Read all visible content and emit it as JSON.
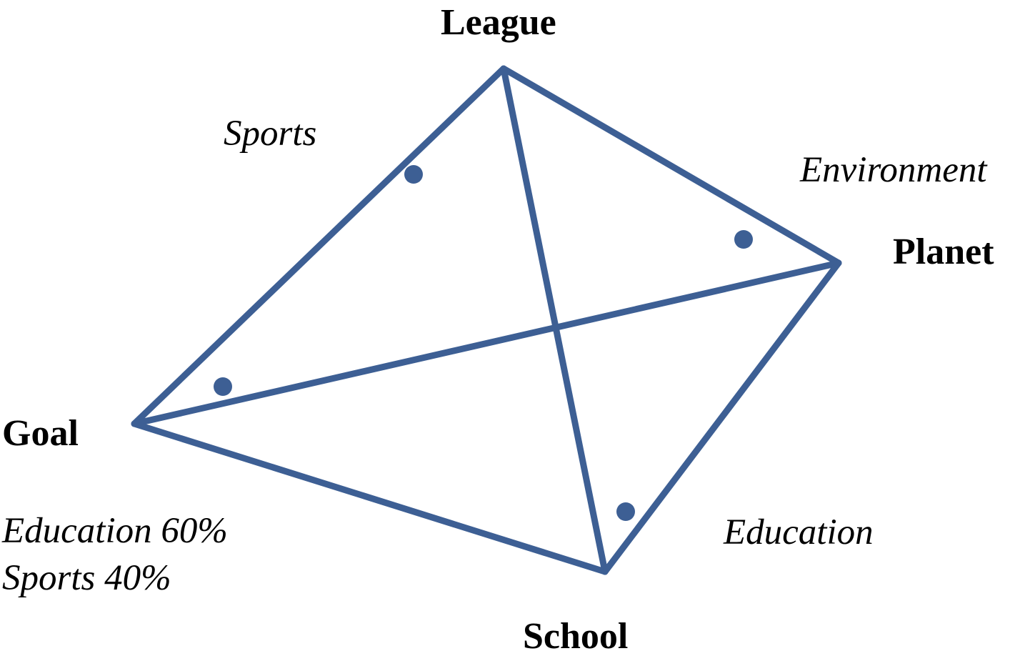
{
  "diagram": {
    "colors": {
      "line": "#3d5f94",
      "text": "#000000",
      "background": "#ffffff"
    },
    "vertices": {
      "league": "League",
      "planet": "Planet",
      "goal": "Goal",
      "school": "School"
    },
    "edge_labels": {
      "sports": "Sports",
      "environment": "Environment",
      "education": "Education"
    },
    "goal_note": {
      "line1": "Education 60%",
      "line2": "Sports 40%"
    }
  }
}
